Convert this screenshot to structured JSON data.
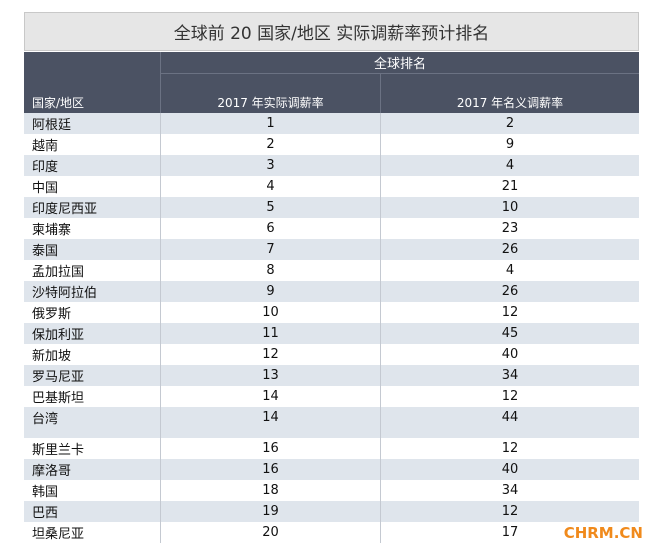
{
  "header": {
    "title": "全球前 20 国家/地区  实际调薪率预计排名"
  },
  "table": {
    "group_header": "全球排名",
    "columns": [
      "国家/地区",
      "2017 年实际调薪率",
      "2017 年名义调薪率"
    ],
    "rows": [
      [
        "阿根廷",
        1,
        2
      ],
      [
        "越南",
        2,
        9
      ],
      [
        "印度",
        3,
        4
      ],
      [
        "中国",
        4,
        21
      ],
      [
        "印度尼西亚",
        5,
        10
      ],
      [
        "柬埔寨",
        6,
        23
      ],
      [
        "泰国",
        7,
        26
      ],
      [
        "孟加拉国",
        8,
        4
      ],
      [
        "沙特阿拉伯",
        9,
        26
      ],
      [
        "俄罗斯",
        10,
        12
      ],
      [
        "保加利亚",
        11,
        45
      ],
      [
        "新加坡",
        12,
        40
      ],
      [
        "罗马尼亚",
        13,
        34
      ],
      [
        "巴基斯坦",
        14,
        12
      ],
      [
        "台湾",
        14,
        44
      ],
      [
        "斯里兰卡",
        16,
        12
      ],
      [
        "摩洛哥",
        16,
        40
      ],
      [
        "韩国",
        18,
        34
      ],
      [
        "巴西",
        19,
        12
      ],
      [
        "坦桑尼亚",
        20,
        17
      ]
    ]
  },
  "watermark": "CHRM.CN"
}
